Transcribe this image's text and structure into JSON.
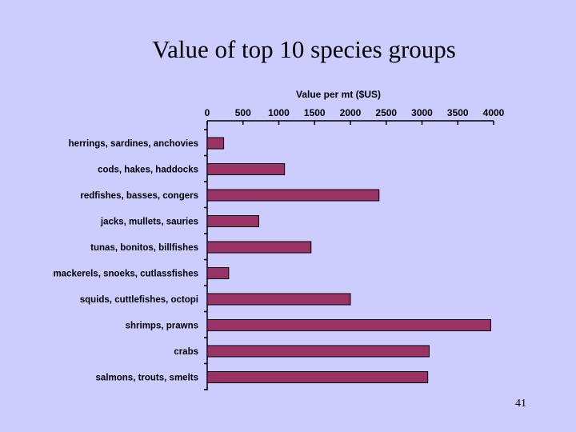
{
  "slide": {
    "title": "Value of top 10 species groups",
    "page_number": "41"
  },
  "chart_data": {
    "type": "bar",
    "orientation": "horizontal",
    "title": "Value per mt ($US)",
    "xlabel": "",
    "ylabel": "",
    "xlim": [
      0,
      4000
    ],
    "ticks": [
      0,
      500,
      1000,
      1500,
      2000,
      2500,
      3000,
      3500,
      4000
    ],
    "tick_labels": [
      "0",
      "500",
      "1000",
      "1500",
      "2000",
      "2500",
      "3000",
      "3500",
      "4000"
    ],
    "x_axis_position": "top",
    "grid": false,
    "legend": "none",
    "categories": [
      "herrings, sardines, anchovies",
      "cods, hakes, haddocks",
      "redfishes, basses, congers",
      "jacks, mullets, sauries",
      "tunas, bonitos, billfishes",
      "mackerels, snoeks, cutlassfishes",
      "squids, cuttlefishes, octopi",
      "shrimps, prawns",
      "crabs",
      "salmons, trouts, smelts"
    ],
    "values": [
      230,
      1080,
      2400,
      720,
      1450,
      300,
      2000,
      3960,
      3100,
      3080
    ],
    "bar_color": "#993366"
  }
}
